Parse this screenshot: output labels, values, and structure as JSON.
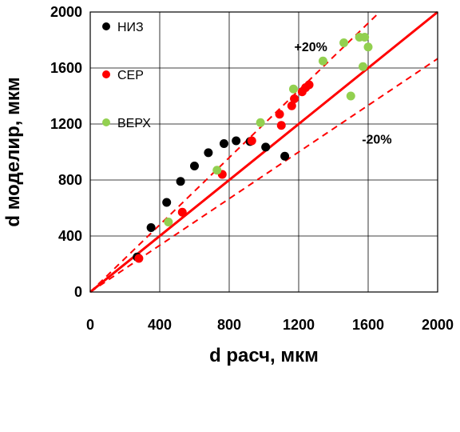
{
  "chart_data": {
    "type": "scatter",
    "xlabel": "d расч, мкм",
    "ylabel": "d моделир, мкм",
    "xlim": [
      0,
      2000
    ],
    "ylim": [
      0,
      2000
    ],
    "xticks": [
      0,
      400,
      800,
      1200,
      1600,
      2000
    ],
    "yticks": [
      0,
      400,
      800,
      1200,
      1600,
      2000
    ],
    "xtick_labels": [
      "0",
      "400",
      "800",
      "1200",
      "1600",
      "2000"
    ],
    "ytick_labels": [
      "0",
      "400",
      "800",
      "1200",
      "1600",
      "2000"
    ],
    "grid": true,
    "legend_position": "top-left",
    "series": [
      {
        "name": "НИЗ",
        "color": "#000000",
        "x": [
          270,
          350,
          440,
          520,
          600,
          680,
          770,
          840,
          920,
          1010,
          1120
        ],
        "y": [
          250,
          460,
          640,
          790,
          900,
          995,
          1060,
          1080,
          1075,
          1035,
          970
        ]
      },
      {
        "name": "СЕР",
        "color": "#ff0000",
        "x": [
          280,
          530,
          760,
          930,
          1090,
          1100,
          1160,
          1175,
          1220,
          1240,
          1260
        ],
        "y": [
          240,
          570,
          840,
          1080,
          1270,
          1190,
          1330,
          1380,
          1430,
          1460,
          1480
        ]
      },
      {
        "name": "ВЕРХ",
        "color": "#92d050",
        "x": [
          450,
          730,
          980,
          1170,
          1340,
          1460,
          1500,
          1550,
          1570,
          1580,
          1600
        ],
        "y": [
          500,
          870,
          1210,
          1450,
          1650,
          1780,
          1400,
          1820,
          1610,
          1820,
          1750
        ]
      }
    ],
    "reference_lines": [
      {
        "kind": "y=x",
        "slope": 1.0,
        "style": "solid",
        "color": "#ff0000"
      },
      {
        "kind": "+20%",
        "slope": 1.2,
        "style": "dashed",
        "color": "#ff0000",
        "label": "+20%"
      },
      {
        "kind": "-20%",
        "slope": 0.8333,
        "style": "dashed",
        "color": "#ff0000",
        "label": "-20%"
      }
    ]
  }
}
